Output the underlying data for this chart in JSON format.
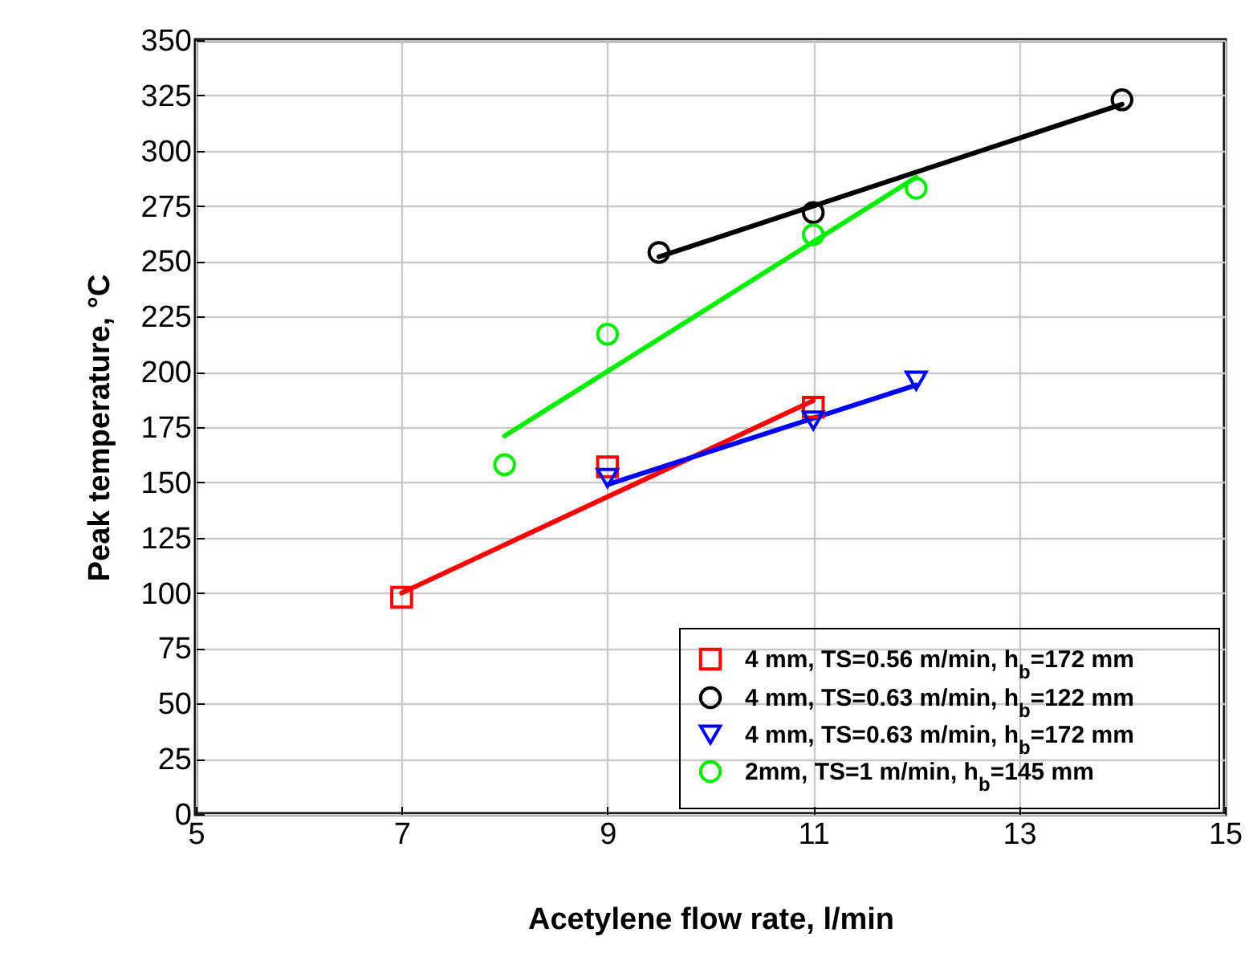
{
  "chart_data": {
    "type": "scatter",
    "xlabel": "Acetylene flow rate, l/min",
    "ylabel": "Peak temperature, °C",
    "xlim": [
      5,
      15
    ],
    "xticks": [
      5,
      7,
      9,
      11,
      13,
      15
    ],
    "ylim": [
      0,
      350
    ],
    "yticks": [
      0,
      25,
      50,
      75,
      100,
      125,
      150,
      175,
      200,
      225,
      250,
      275,
      300,
      325,
      350
    ],
    "grid": true,
    "legend": "bottom right",
    "series": [
      {
        "name": "4 mm, TS=0.56 m/min, h$_{b}$=172 mm",
        "type": "scatter",
        "color": "#ff0000",
        "marker": "square",
        "x": [
          7,
          9,
          11
        ],
        "values": [
          98,
          157,
          184
        ]
      },
      {
        "name": "4 mm, TS=0.63 m/min, h$_{b}$=122 mm",
        "type": "scatter",
        "color": "#000000",
        "marker": "circle",
        "x": [
          9.5,
          11,
          14
        ],
        "values": [
          254,
          272,
          323
        ]
      },
      {
        "name": "4 mm, TS=0.63 m/min, h$_{b}$=172 mm",
        "type": "scatter",
        "color": "#0000ff",
        "marker": "triangle",
        "x": [
          9,
          11,
          12
        ],
        "values": [
          152,
          178,
          196
        ]
      },
      {
        "name": "2mm, TS=1 m/min, h$_{b}$=145 mm",
        "type": "scatter",
        "color": "#00ee00",
        "marker": "circle",
        "x": [
          8,
          9,
          11,
          12
        ],
        "values": [
          158,
          217,
          262,
          283
        ]
      },
      {
        "type": "line",
        "color": "#ff0000",
        "x": [
          7,
          11
        ],
        "values": [
          100,
          187
        ]
      },
      {
        "type": "line",
        "color": "#000000",
        "x": [
          9.5,
          14
        ],
        "values": [
          252,
          321
        ]
      },
      {
        "type": "line",
        "color": "#0000ff",
        "x": [
          9,
          12
        ],
        "values": [
          149,
          194
        ]
      },
      {
        "type": "line",
        "color": "#00ee00",
        "x": [
          8,
          12
        ],
        "values": [
          171,
          288
        ]
      }
    ]
  }
}
